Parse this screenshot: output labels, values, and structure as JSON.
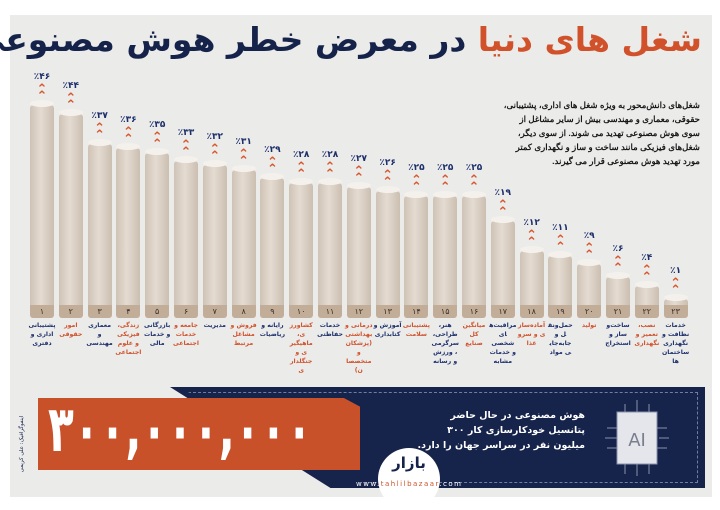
{
  "title": {
    "highlight": "شغل های دنیا",
    "rest": "در معرض خطر هوش مصنوعی"
  },
  "description": "شغل‌های دانش‌محور به ویژه شغل های اداری، پشتیبانی، حقوقی، معماری و مهندسی بیش از سایر مشاغل از سوی هوش مصنوعی تهدید می شوند. از سوی دیگر، شغل‌های فیزیکی مانند ساخت و ساز و نگهداری کمتر مورد تهدید هوش مصنوعی قرار می گیرند.",
  "colors": {
    "navy": "#15224a",
    "orange": "#d1512a",
    "bar": "#d9cec2"
  },
  "chart_data": {
    "type": "bar",
    "title": "شغل های دنیا در معرض خطر هوش مصنوعی",
    "unit": "%",
    "ylim": [
      0,
      46
    ],
    "grid": false,
    "categories": [
      "پشتیبانی اداری و دفتری",
      "امور حقوقی",
      "معماری و مهندسی",
      "زندگی، فیزیکی و علوم اجتماعی",
      "بازرگانی و خدمات مالی",
      "جامعه و خدمات اجتماعی",
      "مدیریت",
      "فروش و مشاغل مرتبط",
      "رایانه و ریاضیات",
      "کشاورزی، ماهیگیری و جنگلداری",
      "خدمات حفاظتی",
      "درمانی و بهداشتی (پزشکان و متخصصان)",
      "آموزش و کتابداری",
      "پشتیبانی سلامت",
      "هنر، طراحی، سرگرمی، ورزش و رسانه",
      "میانگین کل صنایع",
      "مراقبت‌های شخصی و خدمات مشابه",
      "آماده‌سازی و سرو غذا",
      "حمل‌ونقل و جابه‌جایی مواد",
      "تولید",
      "ساخت‌وساز و استخراج",
      "نصب، تعمیر و نگهداری",
      "خدمات نظافت و نگهداری ساختمان‌ها"
    ],
    "rank_labels": [
      "۱",
      "۲",
      "۳",
      "۴",
      "۵",
      "۶",
      "۷",
      "۸",
      "۹",
      "۱۰",
      "۱۱",
      "۱۲",
      "۱۳",
      "۱۴",
      "۱۵",
      "۱۶",
      "۱۷",
      "۱۸",
      "۱۹",
      "۲۰",
      "۲۱",
      "۲۲",
      "۲۳"
    ],
    "value_labels": [
      "٪۴۶",
      "٪۴۴",
      "٪۳۷",
      "٪۳۶",
      "٪۳۵",
      "٪۳۳",
      "٪۳۲",
      "٪۳۱",
      "٪۲۹",
      "٪۲۸",
      "٪۲۸",
      "٪۲۷",
      "٪۲۶",
      "٪۲۵",
      "٪۲۵",
      "٪۲۵",
      "٪۱۹",
      "٪۱۲",
      "٪۱۱",
      "٪۹",
      "٪۶",
      "٪۴",
      "٪۱"
    ],
    "values": [
      46,
      44,
      37,
      36,
      35,
      33,
      32,
      31,
      29,
      28,
      28,
      27,
      26,
      25,
      25,
      25,
      19,
      12,
      11,
      9,
      6,
      4,
      1
    ]
  },
  "banner": {
    "big_number": "۳۰۰,۰۰۰,۰۰۰",
    "text": "هوش مصنوعی در حال حاضر پتانسیل خودکارسازی کار ۳۰۰ میلیون نفر در سراسر جهان را دارد.",
    "chip_label": "AI",
    "logo": "بازار",
    "url_prefix": "www.",
    "url_brand": "tahlilbazaar",
    "url_suffix": ".com"
  },
  "credit": "اینفوگرافیک: علی کریمی"
}
